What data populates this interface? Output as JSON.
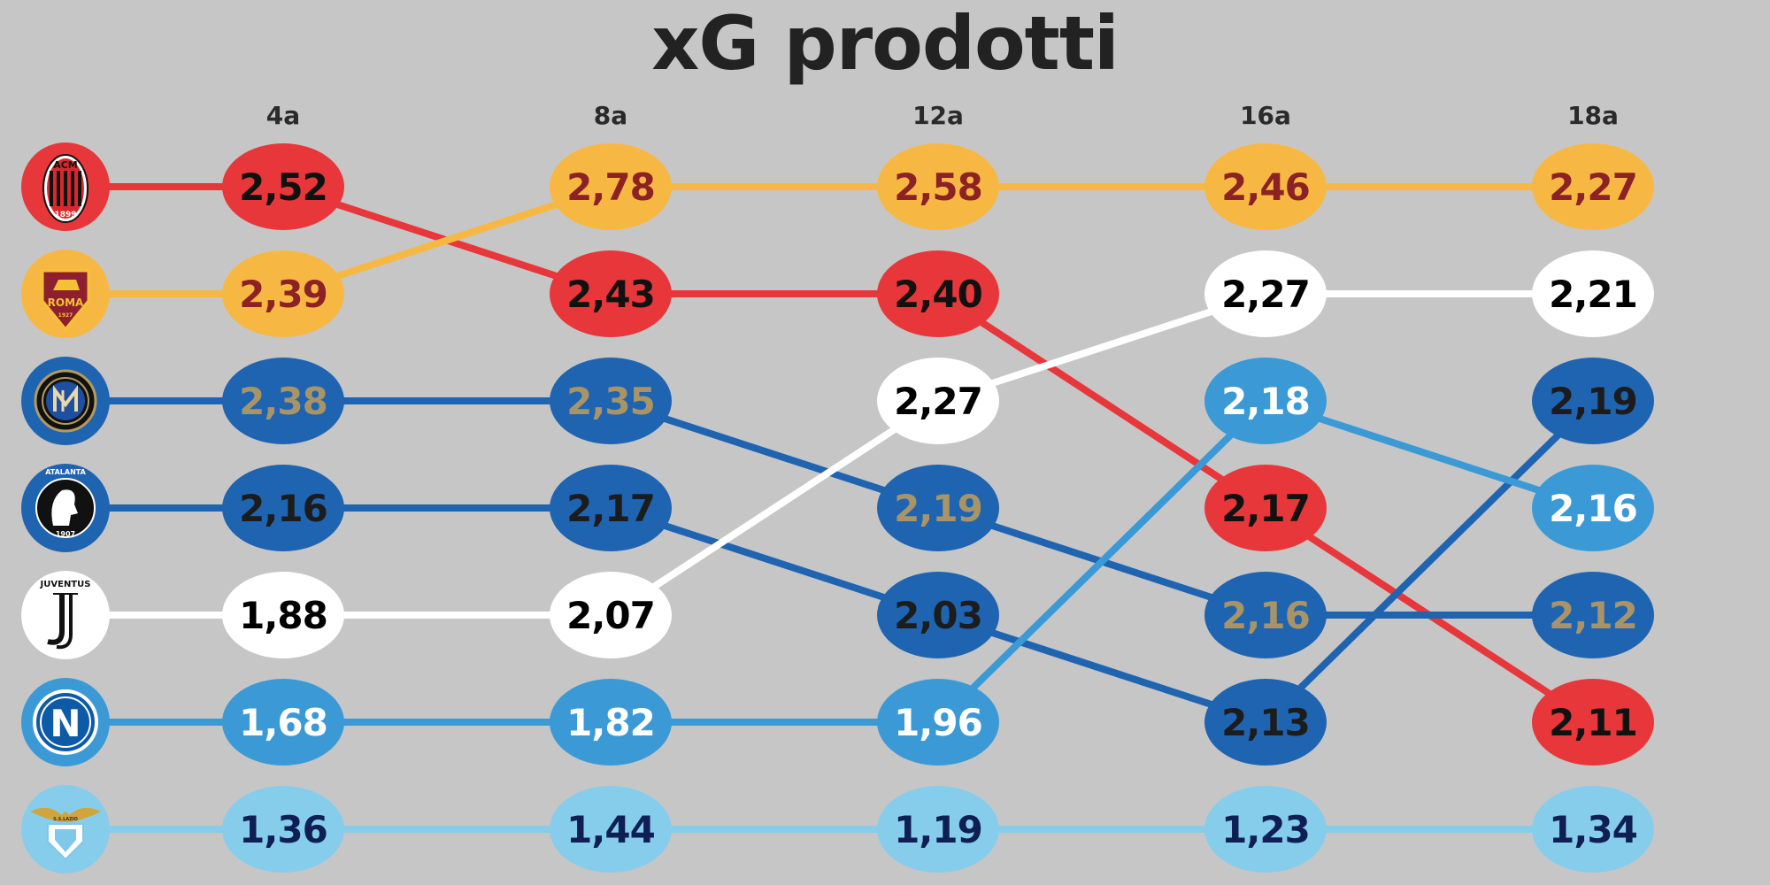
{
  "chart_data": {
    "type": "line",
    "title": "xG prodotti",
    "categories": [
      "4a",
      "8a",
      "12a",
      "16a",
      "18a"
    ],
    "series": [
      {
        "team": "milan",
        "color": "#e8373a",
        "text_color": "#111111",
        "logo": "milan-logo",
        "values": [
          2.52,
          2.43,
          2.4,
          2.17,
          2.11
        ],
        "labels": [
          "2,52",
          "2,43",
          "2,40",
          "2,17",
          "2,11"
        ],
        "ranks": [
          1,
          2,
          2,
          4,
          6
        ]
      },
      {
        "team": "roma",
        "color": "#f7b843",
        "text_color": "#8c2224",
        "logo": "roma-logo",
        "values": [
          2.39,
          2.78,
          2.58,
          2.46,
          2.27
        ],
        "labels": [
          "2,39",
          "2,78",
          "2,58",
          "2,46",
          "2,27"
        ],
        "ranks": [
          2,
          1,
          1,
          1,
          1
        ]
      },
      {
        "team": "inter",
        "color": "#1f64b1",
        "text_color": "#a89466",
        "logo": "inter-logo",
        "values": [
          2.38,
          2.35,
          2.19,
          2.16,
          2.12
        ],
        "labels": [
          "2,38",
          "2,35",
          "2,19",
          "2,16",
          "2,12"
        ],
        "ranks": [
          3,
          3,
          4,
          5,
          5
        ]
      },
      {
        "team": "atalanta",
        "color": "#1f64b1",
        "text_color": "#1c1c1c",
        "logo": "atalanta-logo",
        "values": [
          2.16,
          2.17,
          2.03,
          2.13,
          2.19
        ],
        "labels": [
          "2,16",
          "2,17",
          "2,03",
          "2,13",
          "2,19"
        ],
        "ranks": [
          4,
          4,
          5,
          6,
          3
        ]
      },
      {
        "team": "juventus",
        "color": "#ffffff",
        "text_color": "#000000",
        "logo": "juventus-logo",
        "values": [
          1.88,
          2.07,
          2.27,
          2.27,
          2.21
        ],
        "labels": [
          "1,88",
          "2,07",
          "2,27",
          "2,27",
          "2,21"
        ],
        "ranks": [
          5,
          5,
          3,
          2,
          2
        ]
      },
      {
        "team": "napoli",
        "color": "#3b9ad6",
        "text_color": "#ffffff",
        "logo": "napoli-logo",
        "values": [
          1.68,
          1.82,
          1.96,
          2.18,
          2.16
        ],
        "labels": [
          "1,68",
          "1,82",
          "1,96",
          "2,18",
          "2,16"
        ],
        "ranks": [
          6,
          6,
          6,
          3,
          4
        ]
      },
      {
        "team": "lazio",
        "color": "#86cdec",
        "text_color": "#0f1f55",
        "logo": "lazio-logo",
        "values": [
          1.36,
          1.44,
          1.19,
          1.23,
          1.34
        ],
        "labels": [
          "1,36",
          "1,44",
          "1,19",
          "1,23",
          "1,34"
        ],
        "ranks": [
          7,
          7,
          7,
          7,
          7
        ]
      }
    ],
    "logos": {
      "milan": {
        "text_top": "ACM",
        "text_bottom": "1899"
      },
      "roma": {
        "text": "ROMA",
        "year": "1927"
      },
      "atalanta": {
        "text_top": "ATALANTA",
        "year": "1907"
      },
      "juventus": {
        "text": "JUVENTUS"
      },
      "napoli": {
        "letter": "N"
      },
      "lazio": {
        "text": "S.S.LAZIO"
      }
    }
  }
}
